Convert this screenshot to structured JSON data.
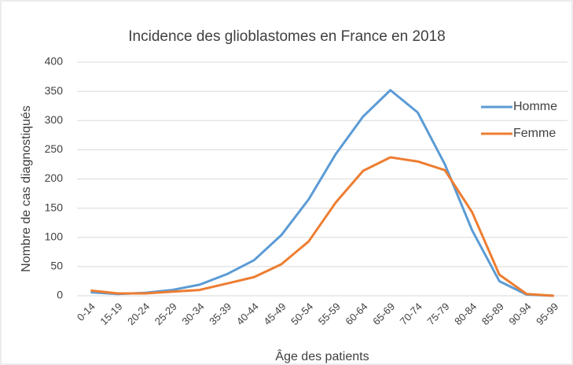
{
  "chart_data": {
    "type": "line",
    "title": "Incidence des glioblastomes en France en 2018",
    "x_label": "Âge des patients",
    "y_label": "Nombre de cas diagnostiqués",
    "categories": [
      "0-14",
      "15-19",
      "20-24",
      "25-29",
      "30-34",
      "35-39",
      "40-44",
      "45-49",
      "50-54",
      "55-59",
      "60-64",
      "65-69",
      "70-74",
      "75-79",
      "80-84",
      "85-89",
      "90-94",
      "95-99"
    ],
    "series": [
      {
        "name": "Homme",
        "color": "#5b9bd5",
        "values": [
          6,
          3,
          5,
          10,
          19,
          37,
          61,
          104,
          165,
          243,
          307,
          352,
          314,
          225,
          112,
          25,
          2,
          0
        ]
      },
      {
        "name": "Femme",
        "color": "#ed7d31",
        "values": [
          9,
          4,
          4,
          7,
          10,
          21,
          32,
          54,
          93,
          160,
          214,
          237,
          230,
          215,
          143,
          36,
          3,
          0
        ]
      }
    ],
    "ylim": [
      0,
      400
    ],
    "yticks": [
      0,
      50,
      100,
      150,
      200,
      250,
      300,
      350,
      400
    ],
    "grid": true,
    "legend": "right"
  }
}
